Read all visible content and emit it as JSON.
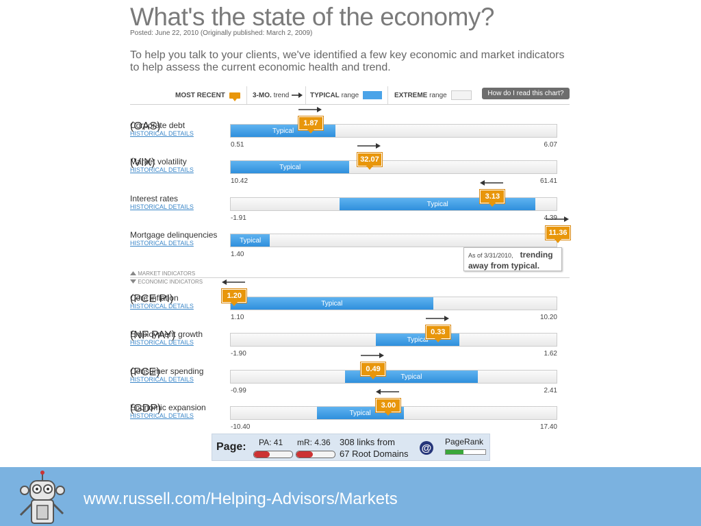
{
  "header": {
    "title": "What's the state of the economy?",
    "posted": "Posted: June 22, 2010 (Originally published: March 2, 2009)",
    "intro": "To help you talk to your clients, we've identified a few key economic and market indicators to help assess the current economic health and trend."
  },
  "legend": {
    "most_recent_bold": "MOST RECENT",
    "trend_bold": "3-MO.",
    "trend_text": "trend",
    "typical_bold": "TYPICAL",
    "typical_text": "range",
    "extreme_bold": "EXTREME",
    "extreme_text": "range",
    "help_button": "How do I read this chart?"
  },
  "chart_data": {
    "type": "range-indicator",
    "typical_label": "Typical",
    "details_link": "HISTORICAL DETAILS",
    "indicators": [
      {
        "name": "Corporate debt",
        "abbr": "(OAS)",
        "min": "0.51",
        "max": "6.07",
        "typical_from": 0.51,
        "typical_to": 2.3,
        "value": "1.87",
        "value_num": 1.87,
        "trend": "up"
      },
      {
        "name": "Market volatility",
        "abbr": "(VIX)",
        "min": "10.42",
        "max": "61.41",
        "typical_from": 10.42,
        "typical_to": 29.0,
        "value": "32.07",
        "value_num": 32.07,
        "trend": "up"
      },
      {
        "name": "Interest rates",
        "abbr": "",
        "min": "-1.91",
        "max": "4.39",
        "typical_from": 0.2,
        "typical_to": 3.98,
        "value": "3.13",
        "value_num": 3.13,
        "trend": "down"
      },
      {
        "name": "Mortgage delinquencies",
        "abbr": "",
        "min": "1.40",
        "max": "",
        "typical_from": 1.4,
        "typical_to": 2.6,
        "value": "11.36",
        "value_num": 11.36,
        "trend": "up"
      },
      {
        "name": "Core inflation",
        "abbr": "(PCE PI)",
        "min": "1.10",
        "max": "10.20",
        "typical_from": 1.1,
        "typical_to": 6.75,
        "value": "1.20",
        "value_num": 1.2,
        "trend": "down"
      },
      {
        "name": "Employment growth",
        "abbr": "(NF PAY)",
        "min": "-1.90",
        "max": "1.62",
        "typical_from": -0.33,
        "typical_to": 0.57,
        "value": "0.33",
        "value_num": 0.33,
        "trend": "up"
      },
      {
        "name": "Consumer spending",
        "abbr": "(PCE)",
        "min": "-0.99",
        "max": "2.41",
        "typical_from": 0.2,
        "typical_to": 1.59,
        "value": "0.49",
        "value_num": 0.49,
        "trend": "up"
      },
      {
        "name": "Economic expansion",
        "abbr": "(GDP)",
        "min": "-10.40",
        "max": "17.40",
        "typical_from": -3.05,
        "typical_to": 4.35,
        "value": "3.00",
        "value_num": 3.0,
        "trend": "down"
      }
    ]
  },
  "note": {
    "date": "As of 3/31/2010,",
    "line1": "trending",
    "line2": "away from typical."
  },
  "sections": {
    "market": "MARKET INDICATORS",
    "economic": "ECONOMIC INDICATORS"
  },
  "seo_bar": {
    "page_label": "Page:",
    "pa": "PA: 41",
    "pa_fraction": 0.41,
    "mr": "mR: 4.36",
    "mr_fraction": 0.436,
    "links_line1": "308 links from",
    "links_line2": "67 Root Domains",
    "at_symbol": "@",
    "pagerank_label": "PageRank",
    "pagerank_fraction": 0.45
  },
  "footer": {
    "url": "www.russell.com/Helping-Advisors/Markets"
  },
  "colors": {
    "typical": "#2f8fdc",
    "marker": "#e8960b",
    "footer_bg": "#7bb2e0",
    "link": "#3a86c8"
  },
  "icons": [
    "arrow-right-icon",
    "arrow-left-icon",
    "triangle-up-icon",
    "triangle-down-icon",
    "robot-mascot-icon",
    "at-sign-icon"
  ]
}
